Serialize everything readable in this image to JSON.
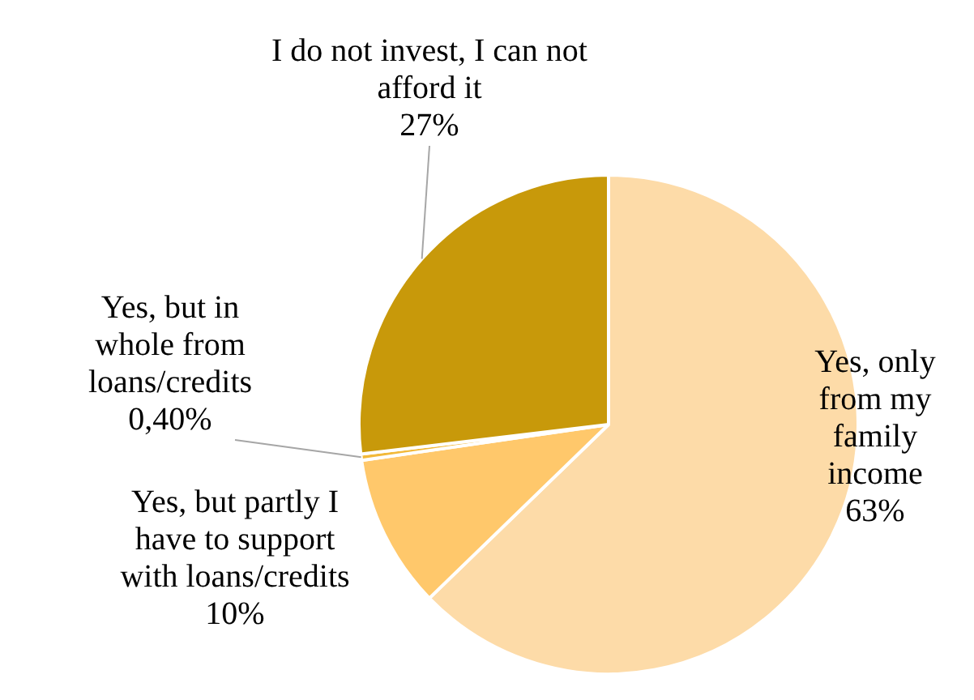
{
  "chart_data": {
    "type": "pie",
    "categories": [
      "Yes, only from my family income",
      "Yes, but partly I have to support with loans/credits",
      "Yes, but in whole from loans/credits",
      "I do not invest, I can not afford it"
    ],
    "values": [
      63,
      10,
      0.4,
      27
    ],
    "value_labels": [
      "63%",
      "10%",
      "0,40%",
      "27%"
    ],
    "colors": [
      "#fddba8",
      "#ffc86b",
      "#f2b93a",
      "#c8990a"
    ],
    "legend": false
  }
}
